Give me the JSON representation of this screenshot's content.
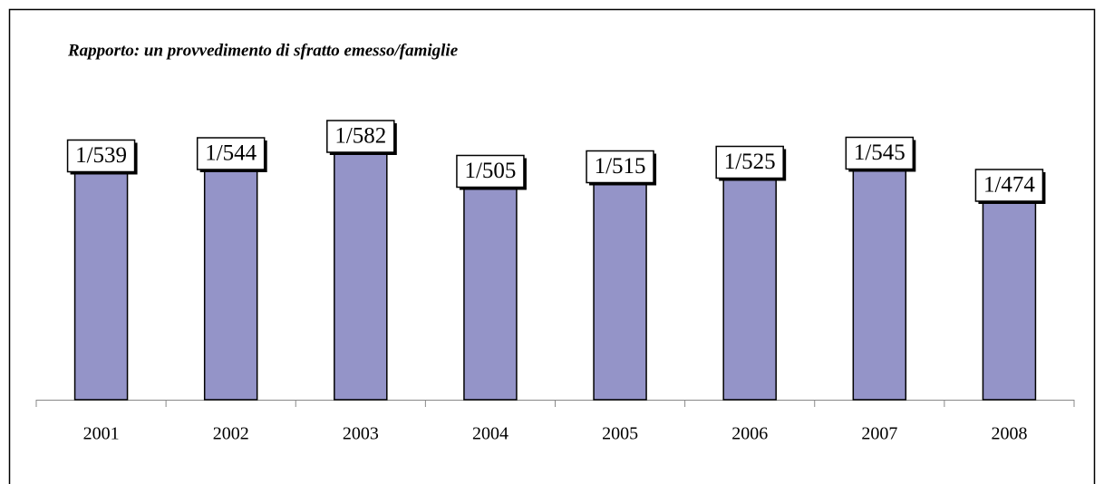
{
  "chart_data": {
    "type": "bar",
    "title": "Rapporto: un provvedimento di sfratto emesso/famiglie",
    "categories": [
      "2001",
      "2002",
      "2003",
      "2004",
      "2005",
      "2006",
      "2007",
      "2008"
    ],
    "values": [
      539,
      544,
      582,
      505,
      515,
      525,
      545,
      474
    ],
    "value_labels": [
      "1/539",
      "1/544",
      "1/582",
      "1/505",
      "1/515",
      "1/525",
      "1/545",
      "1/474"
    ],
    "color": "#9494c8",
    "ylim": [
      0,
      600
    ]
  }
}
